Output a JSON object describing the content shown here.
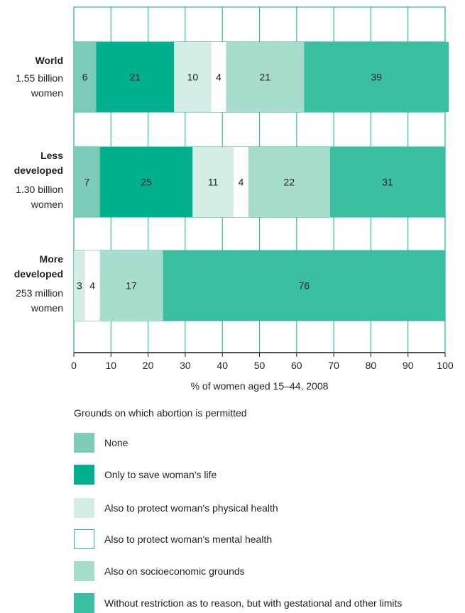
{
  "chart_data": {
    "type": "bar",
    "orientation": "horizontal",
    "stacked": true,
    "xlabel": "% of women aged 15–44, 2008",
    "xlim": [
      0,
      100
    ],
    "xticks": [
      0,
      10,
      20,
      30,
      40,
      50,
      60,
      70,
      80,
      90,
      100
    ],
    "grid": true,
    "categories": [
      {
        "name": "World",
        "sub": [
          "1.55 billion",
          "women"
        ]
      },
      {
        "name": "Less developed",
        "name_lines": [
          "Less",
          "developed"
        ],
        "sub": [
          "1.30 billion",
          "women"
        ]
      },
      {
        "name": "More developed",
        "name_lines": [
          "More",
          "developed"
        ],
        "sub": [
          "253 million",
          "women"
        ]
      }
    ],
    "legend_title": "Grounds on which abortion is permitted",
    "series": [
      {
        "name": "None",
        "color": "#7ccbb8",
        "values": [
          6,
          7,
          0
        ]
      },
      {
        "name": "Only to save woman's life",
        "color": "#00b08f",
        "values": [
          21,
          25,
          0
        ]
      },
      {
        "name": "Also to protect woman's physical health",
        "color": "#d3ede6",
        "values": [
          10,
          11,
          3
        ]
      },
      {
        "name": "Also to protect woman's mental health",
        "color": "#ffffff",
        "values": [
          4,
          4,
          4
        ]
      },
      {
        "name": "Also on socioeconomic grounds",
        "color": "#a8dccd",
        "values": [
          21,
          22,
          17
        ]
      },
      {
        "name": "Without restriction as to reason, but with gestational and other limits",
        "color": "#3bbfa3",
        "values": [
          39,
          31,
          76
        ]
      }
    ],
    "grid_color": "#2ab79b",
    "text_color": "#231f20"
  }
}
